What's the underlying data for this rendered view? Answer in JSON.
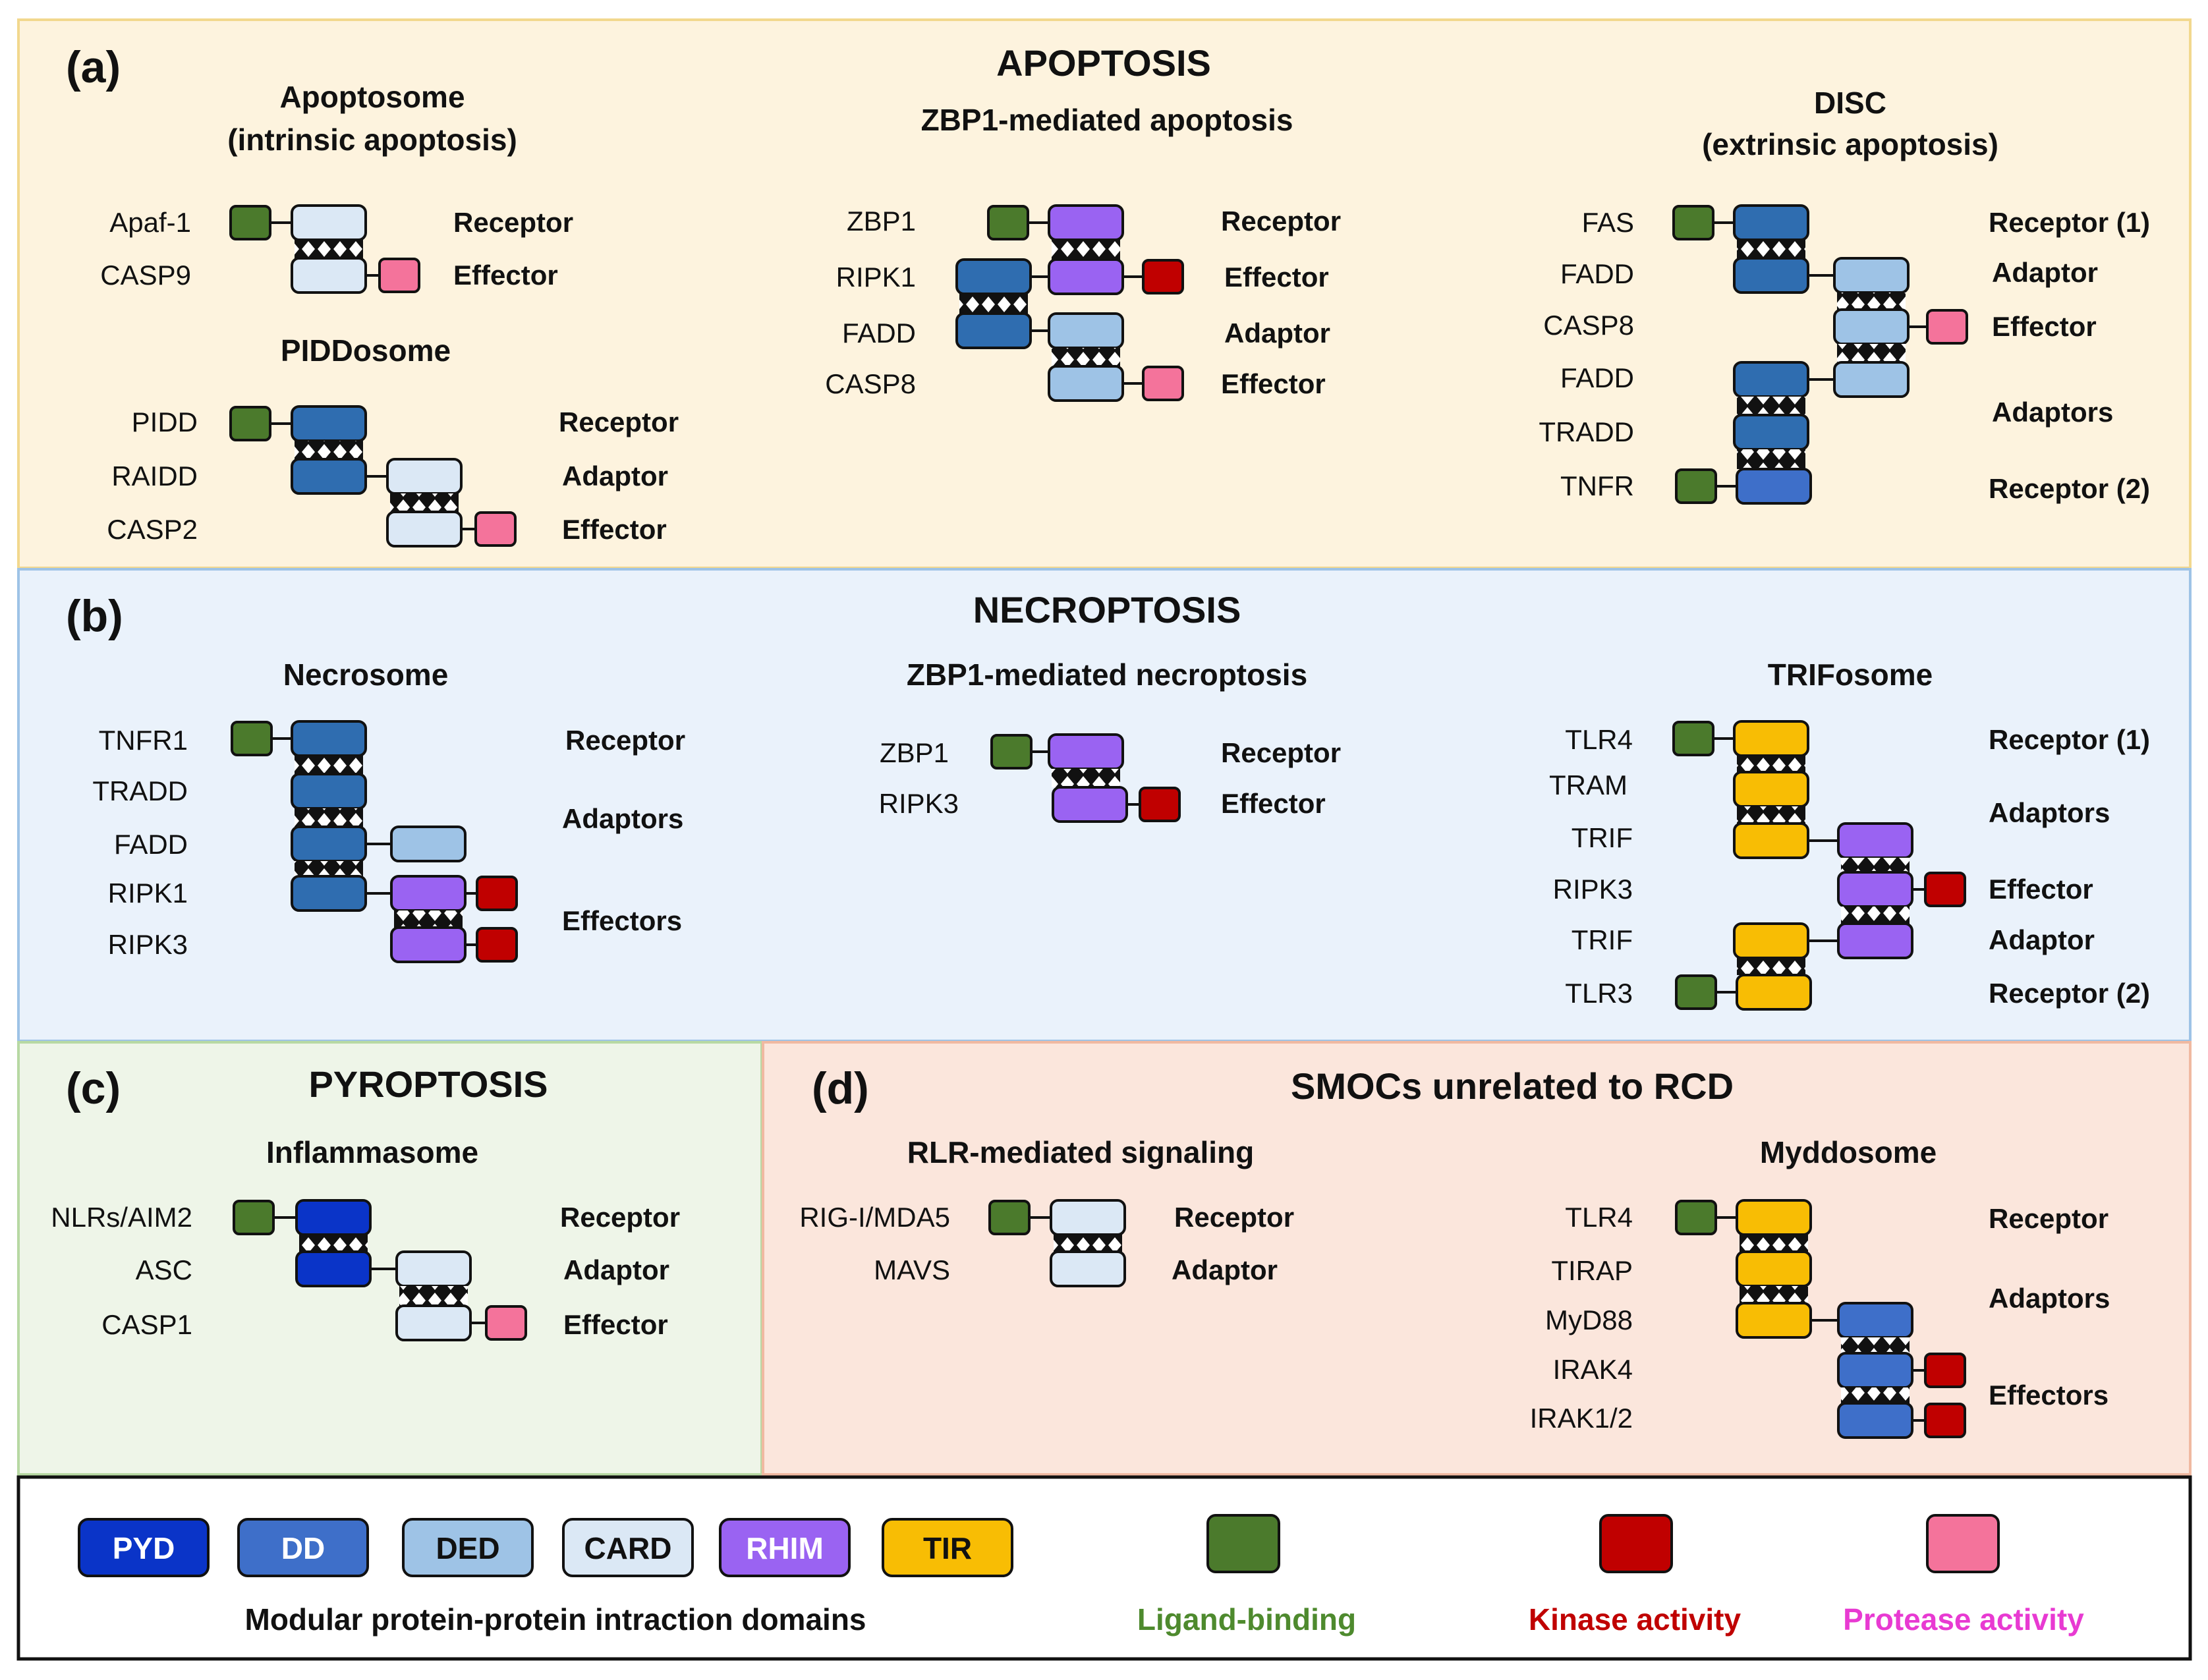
{
  "colors": {
    "PYD": "#0a34c8",
    "DD": "#2f6db0",
    "DD_light": "#3e6fc9",
    "DED": "#9ec3e6",
    "CARD": "#dbe8f5",
    "RHIM": "#9a63f2",
    "TIR": "#f8bd04",
    "ligand": "#4b7a2c",
    "kinase": "#c00000",
    "protease": "#f4739b",
    "panel_a": "#fdf3de",
    "panel_b": "#eaf2fb",
    "panel_c": "#eef5e8",
    "panel_d": "#fbe6dc"
  },
  "panel_a": {
    "letter": "(a)",
    "title": "APOPTOSIS",
    "apoptosome": {
      "title1": "Apoptosome",
      "title2": "(intrinsic apoptosis)",
      "proteins": [
        "Apaf-1",
        "CASP9"
      ],
      "roles": [
        "Receptor",
        "Effector"
      ]
    },
    "piddosome": {
      "title": "PIDDosome",
      "proteins": [
        "PIDD",
        "RAIDD",
        "CASP2"
      ],
      "roles": [
        "Receptor",
        "Adaptor",
        "Effector"
      ]
    },
    "zbp1_apoptosis": {
      "title": "ZBP1-mediated apoptosis",
      "proteins": [
        "ZBP1",
        "RIPK1",
        "FADD",
        "CASP8"
      ],
      "roles": [
        "Receptor",
        "Effector",
        "Adaptor",
        "Effector"
      ]
    },
    "disc": {
      "title1": "DISC",
      "title2": "(extrinsic apoptosis)",
      "proteins": [
        "FAS",
        "FADD",
        "CASP8",
        "FADD",
        "TRADD",
        "TNFR"
      ],
      "roles": [
        "Receptor (1)",
        "Adaptor",
        "Effector",
        "Adaptors",
        "Receptor (2)"
      ]
    }
  },
  "panel_b": {
    "letter": "(b)",
    "title": "NECROPTOSIS",
    "necrosome": {
      "title": "Necrosome",
      "proteins": [
        "TNFR1",
        "TRADD",
        "FADD",
        "RIPK1",
        "RIPK3"
      ],
      "roles": [
        "Receptor",
        "Adaptors",
        "Effectors"
      ]
    },
    "zbp1_necroptosis": {
      "title": "ZBP1-mediated necroptosis",
      "proteins": [
        "ZBP1",
        "RIPK3"
      ],
      "roles": [
        "Receptor",
        "Effector"
      ]
    },
    "trifosome": {
      "title": "TRIFosome",
      "proteins": [
        "TLR4",
        "TRAM",
        "TRIF",
        "RIPK3",
        "TRIF",
        "TLR3"
      ],
      "roles": [
        "Receptor (1)",
        "Adaptors",
        "Effector",
        "Adaptor",
        "Receptor (2)"
      ]
    }
  },
  "panel_c": {
    "letter": "(c)",
    "title": "PYROPTOSIS",
    "inflammasome": {
      "title": "Inflammasome",
      "proteins": [
        "NLRs/AIM2",
        "ASC",
        "CASP1"
      ],
      "roles": [
        "Receptor",
        "Adaptor",
        "Effector"
      ]
    }
  },
  "panel_d": {
    "letter": "(d)",
    "title": "SMOCs unrelated to RCD",
    "rlr": {
      "title": "RLR-mediated signaling",
      "proteins": [
        "RIG-I/MDA5",
        "MAVS"
      ],
      "roles": [
        "Receptor",
        "Adaptor"
      ]
    },
    "myddosome": {
      "title": "Myddosome",
      "proteins": [
        "TLR4",
        "TIRAP",
        "MyD88",
        "IRAK4",
        "IRAK1/2"
      ],
      "roles": [
        "Receptor",
        "Adaptors",
        "Effectors"
      ]
    }
  },
  "legend": {
    "domains": [
      "PYD",
      "DD",
      "DED",
      "CARD",
      "RHIM",
      "TIR"
    ],
    "domains_caption": "Modular protein-protein intraction domains",
    "ligand": "Ligand-binding",
    "kinase": "Kinase activity",
    "protease": "Protease activity"
  }
}
